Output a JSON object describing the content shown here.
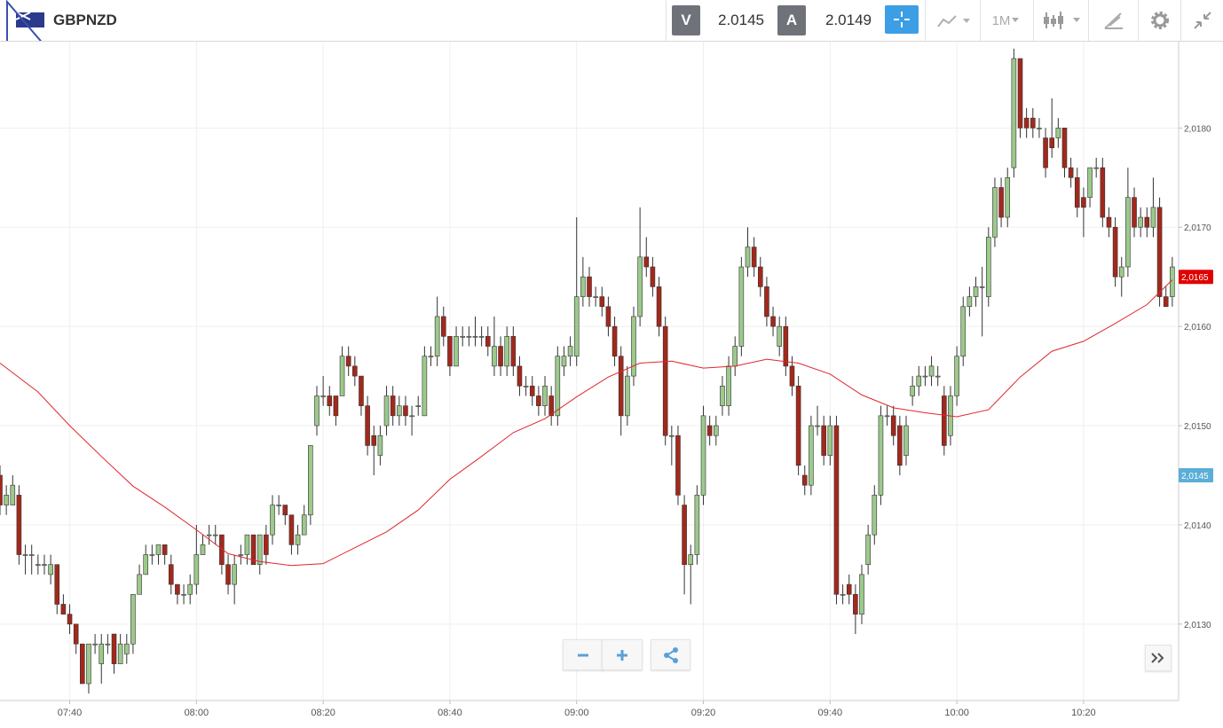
{
  "toolbar": {
    "symbol": "GBPNZD",
    "sell_label": "V",
    "sell_price": "2.0145",
    "buy_label": "A",
    "buy_price": "2.0149",
    "interval": "1M"
  },
  "chart_data": {
    "type": "candlestick",
    "x": [
      "07:29",
      "07:30",
      "07:31",
      "07:32",
      "07:33",
      "07:34",
      "07:35",
      "07:36",
      "07:37",
      "07:38",
      "07:39",
      "07:40",
      "07:41",
      "07:42",
      "07:43",
      "07:44",
      "07:45",
      "07:46",
      "07:47",
      "07:48",
      "07:49",
      "07:50",
      "07:51",
      "07:52",
      "07:53",
      "07:54",
      "07:55",
      "07:56",
      "07:57",
      "07:58",
      "07:59",
      "08:00",
      "08:01",
      "08:02",
      "08:03",
      "08:04",
      "08:05",
      "08:06",
      "08:07",
      "08:08",
      "08:09",
      "08:10",
      "08:11",
      "08:12",
      "08:13",
      "08:14",
      "08:15",
      "08:16",
      "08:17",
      "08:18",
      "08:19",
      "08:20",
      "08:21",
      "08:22",
      "08:23",
      "08:24",
      "08:25",
      "08:26",
      "08:27",
      "08:28",
      "08:29",
      "08:30",
      "08:31",
      "08:32",
      "08:33",
      "08:34",
      "08:35",
      "08:36",
      "08:37",
      "08:38",
      "08:39",
      "08:40",
      "08:41",
      "08:42",
      "08:43",
      "08:44",
      "08:45",
      "08:46",
      "08:47",
      "08:48",
      "08:49",
      "08:50",
      "08:51",
      "08:52",
      "08:53",
      "08:54",
      "08:55",
      "08:56",
      "08:57",
      "08:58",
      "08:59",
      "09:00",
      "09:01",
      "09:02",
      "09:03",
      "09:04",
      "09:05",
      "09:06",
      "09:07",
      "09:08",
      "09:09",
      "09:10",
      "09:11",
      "09:12",
      "09:13",
      "09:14",
      "09:15",
      "09:16",
      "09:17",
      "09:18",
      "09:19",
      "09:20",
      "09:21",
      "09:22",
      "09:23",
      "09:24",
      "09:25",
      "09:26",
      "09:27",
      "09:28",
      "09:29",
      "09:30",
      "09:31",
      "09:32",
      "09:33",
      "09:34",
      "09:35",
      "09:36",
      "09:37",
      "09:38",
      "09:39",
      "09:40",
      "09:41",
      "09:42",
      "09:43",
      "09:44",
      "09:45",
      "09:46",
      "09:47",
      "09:48",
      "09:49",
      "09:50",
      "09:51",
      "09:52",
      "09:53",
      "09:54",
      "09:55",
      "09:56",
      "09:57",
      "09:58",
      "09:59",
      "10:00",
      "10:01",
      "10:02",
      "10:03",
      "10:04",
      "10:05",
      "10:06",
      "10:07",
      "10:08",
      "10:09",
      "10:10",
      "10:11",
      "10:12",
      "10:13",
      "10:14",
      "10:15",
      "10:16",
      "10:17",
      "10:18",
      "10:19",
      "10:20",
      "10:21",
      "10:22",
      "10:23",
      "10:24",
      "10:25",
      "10:26",
      "10:27",
      "10:28",
      "10:29",
      "10:30",
      "10:31",
      "10:32",
      "10:33",
      "10:34"
    ],
    "open": [
      2.0145,
      2.0142,
      2.0142,
      2.0143,
      2.0137,
      2.0137,
      2.0136,
      2.0136,
      2.0135,
      2.0136,
      2.0132,
      2.0131,
      2.013,
      2.0128,
      2.0124,
      2.0128,
      2.0126,
      2.0128,
      2.0129,
      2.0126,
      2.0127,
      2.0128,
      2.0133,
      2.0135,
      2.0137,
      2.0137,
      2.0138,
      2.0136,
      2.0134,
      2.0133,
      2.0133,
      2.0134,
      2.0137,
      2.0139,
      2.0139,
      2.0139,
      2.0136,
      2.0134,
      2.0137,
      2.0137,
      2.0139,
      2.0136,
      2.0139,
      2.0139,
      2.0142,
      2.0142,
      2.0141,
      2.0138,
      2.0139,
      2.0141,
      2.015,
      2.0153,
      2.0153,
      2.0153,
      2.0153,
      2.0157,
      2.0156,
      2.0155,
      2.0152,
      2.0149,
      2.0147,
      2.015,
      2.0153,
      2.0151,
      2.0152,
      2.0151,
      2.0152,
      2.0151,
      2.0157,
      2.0157,
      2.0161,
      2.0159,
      2.0156,
      2.0159,
      2.0159,
      2.0159,
      2.0159,
      2.0159,
      2.0156,
      2.0158,
      2.0156,
      2.0159,
      2.0156,
      2.0154,
      2.0154,
      2.0153,
      2.0152,
      2.0153,
      2.0151,
      2.0156,
      2.0157,
      2.0157,
      2.0163,
      2.0165,
      2.0163,
      2.0163,
      2.0162,
      2.016,
      2.0157,
      2.0151,
      2.0155,
      2.0161,
      2.0167,
      2.0166,
      2.0164,
      2.016,
      2.0149,
      2.0149,
      2.0142,
      2.0136,
      2.0137,
      2.0143,
      2.015,
      2.0149,
      2.0152,
      2.0152,
      2.0156,
      2.0158,
      2.0166,
      2.0168,
      2.0166,
      2.0164,
      2.0161,
      2.0158,
      2.016,
      2.0156,
      2.0154,
      2.0145,
      2.0144,
      2.015,
      2.015,
      2.0147,
      2.015,
      2.0133,
      2.0134,
      2.0133,
      2.0131,
      2.0136,
      2.0139,
      2.0143,
      2.0151,
      2.0151,
      2.015,
      2.0147,
      2.0153,
      2.0154,
      2.0155,
      2.0155,
      2.0155,
      2.0153,
      2.0149,
      2.0153,
      2.0157,
      2.0162,
      2.0163,
      2.0164,
      2.0163,
      2.0169,
      2.0174,
      2.0171,
      2.0176,
      2.0187,
      2.0181,
      2.0181,
      2.018,
      2.0179,
      2.0179,
      2.0179,
      2.018,
      2.0176,
      2.0175,
      2.0173,
      2.0173,
      2.0176,
      2.0176,
      2.0171,
      2.017,
      2.0165,
      2.0166,
      2.0173,
      2.017,
      2.0171,
      2.017,
      2.0172,
      2.0163,
      2.0163
    ],
    "high": [
      2.0146,
      2.0144,
      2.0145,
      2.0144,
      2.0138,
      2.0138,
      2.0137,
      2.0137,
      2.0137,
      2.0136,
      2.0133,
      2.0132,
      2.013,
      2.0128,
      2.0128,
      2.0129,
      2.0129,
      2.0129,
      2.0129,
      2.0129,
      2.0129,
      2.0133,
      2.0136,
      2.0138,
      2.0138,
      2.0138,
      2.0138,
      2.0137,
      2.0134,
      2.0134,
      2.0135,
      2.014,
      2.0139,
      2.014,
      2.014,
      2.0139,
      2.0137,
      2.0137,
      2.0138,
      2.0139,
      2.0139,
      2.0139,
      2.014,
      2.0143,
      2.0143,
      2.0142,
      2.0141,
      2.014,
      2.0142,
      2.0148,
      2.0154,
      2.0155,
      2.0154,
      2.0153,
      2.0158,
      2.0158,
      2.0157,
      2.0155,
      2.0153,
      2.015,
      2.015,
      2.0154,
      2.0154,
      2.0153,
      2.0153,
      2.0152,
      2.0153,
      2.0158,
      2.0158,
      2.0163,
      2.0162,
      2.0159,
      2.016,
      2.016,
      2.016,
      2.0161,
      2.016,
      2.016,
      2.0161,
      2.0159,
      2.016,
      2.016,
      2.0157,
      2.0155,
      2.0155,
      2.0154,
      2.0155,
      2.0154,
      2.0158,
      2.0158,
      2.0159,
      2.0171,
      2.0167,
      2.0166,
      2.0164,
      2.0164,
      2.0163,
      2.0161,
      2.0158,
      2.0156,
      2.0162,
      2.0172,
      2.0169,
      2.0167,
      2.0165,
      2.0161,
      2.015,
      2.015,
      2.0143,
      2.0138,
      2.0144,
      2.0152,
      2.0151,
      2.0151,
      2.0155,
      2.0157,
      2.0159,
      2.0167,
      2.017,
      2.0169,
      2.0167,
      2.0165,
      2.0162,
      2.0161,
      2.0161,
      2.0157,
      2.0155,
      2.0146,
      2.0151,
      2.0152,
      2.0151,
      2.0151,
      2.0151,
      2.0134,
      2.0135,
      2.0134,
      2.0136,
      2.014,
      2.0144,
      2.0152,
      2.0152,
      2.0152,
      2.0151,
      2.0151,
      2.0155,
      2.0156,
      2.0156,
      2.0157,
      2.0156,
      2.0154,
      2.0154,
      2.0158,
      2.0163,
      2.0164,
      2.0165,
      2.0166,
      2.017,
      2.0175,
      2.0175,
      2.0176,
      2.0188,
      2.0187,
      2.0182,
      2.0182,
      2.0181,
      2.018,
      2.0183,
      2.0181,
      2.018,
      2.0177,
      2.0176,
      2.0174,
      2.0176,
      2.0177,
      2.0177,
      2.0172,
      2.0171,
      2.0167,
      2.0176,
      2.0174,
      2.0172,
      2.0172,
      2.0175,
      2.0173,
      2.0164,
      2.0167
    ],
    "low": [
      2.0141,
      2.0141,
      2.0142,
      2.0136,
      2.0135,
      2.0135,
      2.0135,
      2.0135,
      2.0134,
      2.0131,
      2.0131,
      2.0129,
      2.0127,
      2.0124,
      2.0123,
      2.0127,
      2.0124,
      2.0127,
      2.0125,
      2.0126,
      2.0126,
      2.0127,
      2.0133,
      2.0135,
      2.0136,
      2.0136,
      2.0136,
      2.0133,
      2.0132,
      2.0132,
      2.0132,
      2.0133,
      2.0137,
      2.0138,
      2.0138,
      2.0135,
      2.0133,
      2.0132,
      2.0136,
      2.0136,
      2.0136,
      2.0135,
      2.0136,
      2.0138,
      2.0141,
      2.014,
      2.0137,
      2.0137,
      2.0139,
      2.014,
      2.0149,
      2.0152,
      2.0151,
      2.015,
      2.0153,
      2.0155,
      2.0154,
      2.0151,
      2.0147,
      2.0145,
      2.0146,
      2.0149,
      2.015,
      2.015,
      2.015,
      2.0149,
      2.0151,
      2.0151,
      2.0156,
      2.0156,
      2.0158,
      2.0155,
      2.0156,
      2.0158,
      2.0158,
      2.0158,
      2.0158,
      2.0157,
      2.0155,
      2.0155,
      2.0155,
      2.0155,
      2.0153,
      2.0153,
      2.0152,
      2.0151,
      2.0151,
      2.015,
      2.015,
      2.0155,
      2.0156,
      2.0156,
      2.0162,
      2.0162,
      2.0162,
      2.0161,
      2.0159,
      2.0156,
      2.0149,
      2.015,
      2.0154,
      2.016,
      2.0165,
      2.0163,
      2.0159,
      2.0148,
      2.0146,
      2.0142,
      2.0133,
      2.0132,
      2.0136,
      2.0142,
      2.0148,
      2.0148,
      2.0151,
      2.0151,
      2.0155,
      2.0157,
      2.0165,
      2.0165,
      2.0163,
      2.016,
      2.0159,
      2.0157,
      2.0155,
      2.0153,
      2.0145,
      2.0143,
      2.0143,
      2.0149,
      2.0146,
      2.0146,
      2.0132,
      2.0132,
      2.0132,
      2.0129,
      2.013,
      2.0135,
      2.0138,
      2.0142,
      2.015,
      2.0148,
      2.0145,
      2.0146,
      2.0152,
      2.0153,
      2.0154,
      2.0154,
      2.0154,
      2.0147,
      2.0148,
      2.0152,
      2.0156,
      2.0161,
      2.0162,
      2.0159,
      2.0162,
      2.0168,
      2.017,
      2.017,
      2.0175,
      2.0179,
      2.0179,
      2.0179,
      2.0179,
      2.0175,
      2.0177,
      2.0178,
      2.0175,
      2.0174,
      2.0171,
      2.0169,
      2.0172,
      2.0175,
      2.017,
      2.0169,
      2.0164,
      2.0163,
      2.0165,
      2.0169,
      2.0169,
      2.0169,
      2.0169,
      2.0162,
      2.0162,
      2.0162
    ],
    "close": [
      2.0142,
      2.0143,
      2.0144,
      2.0137,
      2.0137,
      2.0137,
      2.0136,
      2.0136,
      2.0136,
      2.0132,
      2.0131,
      2.013,
      2.0128,
      2.0124,
      2.0128,
      2.0128,
      2.0128,
      2.0128,
      2.0126,
      2.0128,
      2.0128,
      2.0133,
      2.0135,
      2.0137,
      2.0137,
      2.0138,
      2.0137,
      2.0134,
      2.0133,
      2.0133,
      2.0134,
      2.0137,
      2.0138,
      2.0139,
      2.0139,
      2.0136,
      2.0134,
      2.0136,
      2.0137,
      2.0139,
      2.0136,
      2.0139,
      2.0137,
      2.0142,
      2.0142,
      2.0141,
      2.0138,
      2.0139,
      2.0141,
      2.0148,
      2.0153,
      2.0153,
      2.0152,
      2.0151,
      2.0157,
      2.0156,
      2.0155,
      2.0152,
      2.0148,
      2.0148,
      2.0149,
      2.0153,
      2.0151,
      2.0152,
      2.0151,
      2.0151,
      2.0152,
      2.0157,
      2.0157,
      2.0161,
      2.0159,
      2.0156,
      2.0159,
      2.0159,
      2.0159,
      2.0159,
      2.0159,
      2.0158,
      2.0158,
      2.0156,
      2.0159,
      2.0156,
      2.0154,
      2.0154,
      2.0153,
      2.0152,
      2.0154,
      2.0151,
      2.0157,
      2.0157,
      2.0158,
      2.0163,
      2.0165,
      2.0163,
      2.0163,
      2.0162,
      2.016,
      2.0157,
      2.0151,
      2.0155,
      2.0161,
      2.0167,
      2.0166,
      2.0164,
      2.016,
      2.0149,
      2.0149,
      2.0143,
      2.0136,
      2.0137,
      2.0143,
      2.0151,
      2.0149,
      2.015,
      2.0154,
      2.0156,
      2.0158,
      2.0166,
      2.0168,
      2.0166,
      2.0164,
      2.0161,
      2.016,
      2.016,
      2.0156,
      2.0154,
      2.0146,
      2.0144,
      2.015,
      2.015,
      2.0147,
      2.015,
      2.0133,
      2.0133,
      2.0133,
      2.0131,
      2.0135,
      2.0139,
      2.0143,
      2.0151,
      2.0151,
      2.0149,
      2.0146,
      2.015,
      2.0154,
      2.0155,
      2.0155,
      2.0156,
      2.0155,
      2.0148,
      2.0153,
      2.0157,
      2.0162,
      2.0163,
      2.0164,
      2.0164,
      2.0169,
      2.0174,
      2.0171,
      2.0175,
      2.0187,
      2.018,
      2.018,
      2.018,
      2.018,
      2.0176,
      2.0178,
      2.018,
      2.0176,
      2.0175,
      2.0172,
      2.0172,
      2.0176,
      2.0176,
      2.0171,
      2.017,
      2.0165,
      2.0166,
      2.0173,
      2.017,
      2.0171,
      2.017,
      2.0172,
      2.0163,
      2.0162,
      2.0166
    ],
    "up_color": "#9cc98c",
    "down_color": "#a3281c",
    "moving_average": {
      "color": "#e0262e",
      "x": [
        "07:29",
        "07:35",
        "07:40",
        "07:45",
        "07:50",
        "07:55",
        "08:00",
        "08:05",
        "08:10",
        "08:15",
        "08:20",
        "08:25",
        "08:30",
        "08:35",
        "08:40",
        "08:45",
        "08:50",
        "08:55",
        "09:00",
        "09:05",
        "09:10",
        "09:15",
        "09:20",
        "09:25",
        "09:30",
        "09:35",
        "09:40",
        "09:45",
        "09:50",
        "09:55",
        "10:00",
        "10:05",
        "10:10",
        "10:15",
        "10:20",
        "10:25",
        "10:30",
        "10:34"
      ],
      "values": [
        2.01563,
        2.01534,
        2.015,
        2.01469,
        2.01439,
        2.01418,
        2.01395,
        2.01371,
        2.01363,
        2.01359,
        2.01361,
        2.01377,
        2.01393,
        2.01415,
        2.01446,
        2.01469,
        2.01493,
        2.01507,
        2.01529,
        2.01549,
        2.01563,
        2.01565,
        2.01558,
        2.0156,
        2.01567,
        2.01563,
        2.01552,
        2.01531,
        2.01518,
        2.01513,
        2.01509,
        2.01516,
        2.01549,
        2.01575,
        2.01585,
        2.01603,
        2.01622,
        2.01647
      ]
    },
    "xlim": [
      "07:29",
      "10:35"
    ],
    "xticks": [
      "07:40",
      "08:00",
      "08:20",
      "08:40",
      "09:00",
      "09:20",
      "09:40",
      "10:00",
      "10:20"
    ],
    "ylim": [
      2.01223,
      2.01887
    ],
    "yticks": [
      {
        "value": 2.013,
        "label": "2,0130"
      },
      {
        "value": 2.014,
        "label": "2,0140"
      },
      {
        "value": 2.015,
        "label": "2,0150"
      },
      {
        "value": 2.016,
        "label": "2,0160"
      },
      {
        "value": 2.017,
        "label": "2,0170"
      },
      {
        "value": 2.018,
        "label": "2,0180"
      }
    ],
    "grid": true,
    "price_tags": [
      {
        "value": 2.0165,
        "label": "2,0165",
        "color": "#e00000"
      },
      {
        "value": 2.0145,
        "label": "2,0145",
        "color": "#5aaed8"
      }
    ]
  }
}
